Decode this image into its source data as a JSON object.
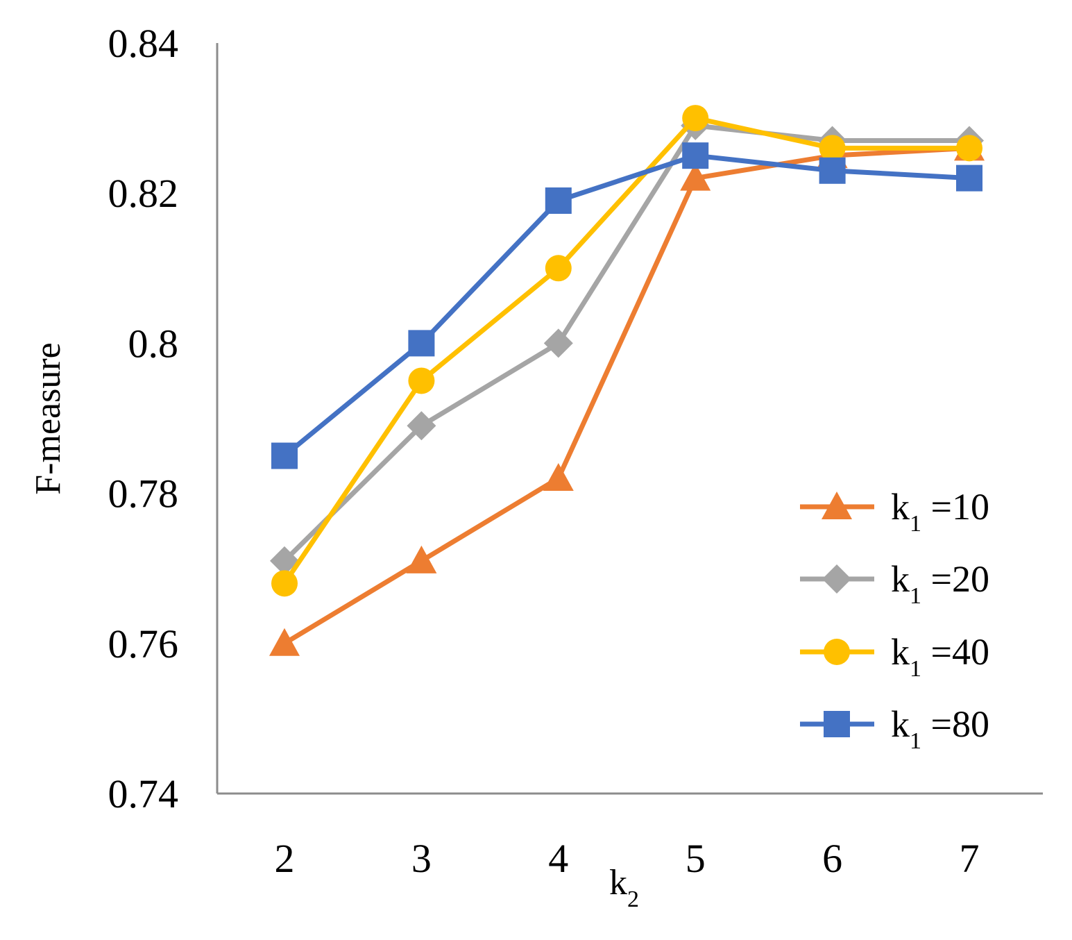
{
  "chart_data": {
    "type": "line",
    "title": "",
    "xlabel": "k",
    "xlabel_subscript": "2",
    "ylabel": "F-measure",
    "x": [
      2,
      3,
      4,
      5,
      6,
      7
    ],
    "x_tick_labels": [
      "2",
      "3",
      "4",
      "5",
      "6",
      "7"
    ],
    "ylim": [
      0.74,
      0.84
    ],
    "y_ticks": [
      0.74,
      0.76,
      0.78,
      0.8,
      0.82,
      0.84
    ],
    "y_tick_labels": [
      "0.74",
      "0.76",
      "0.78",
      "0.8",
      "0.82",
      "0.84"
    ],
    "grid": false,
    "legend_position": "right",
    "series": [
      {
        "name": "k1 =10",
        "label_main": "k",
        "label_sub": "1",
        "label_rest": " =10",
        "marker": "triangle",
        "color": "#ED7D31",
        "values": [
          0.76,
          0.771,
          0.782,
          0.822,
          0.825,
          0.826
        ]
      },
      {
        "name": "k1 =20",
        "label_main": "k",
        "label_sub": "1",
        "label_rest": " =20",
        "marker": "diamond",
        "color": "#A5A5A5",
        "values": [
          0.771,
          0.789,
          0.8,
          0.829,
          0.827,
          0.827
        ]
      },
      {
        "name": "k1 =40",
        "label_main": "k",
        "label_sub": "1",
        "label_rest": " =40",
        "marker": "circle",
        "color": "#FFC000",
        "values": [
          0.768,
          0.795,
          0.81,
          0.83,
          0.826,
          0.826
        ]
      },
      {
        "name": "k1 =80",
        "label_main": "k",
        "label_sub": "1",
        "label_rest": " =80",
        "marker": "square",
        "color": "#4472C4",
        "values": [
          0.785,
          0.8,
          0.819,
          0.825,
          0.823,
          0.822
        ]
      }
    ]
  }
}
